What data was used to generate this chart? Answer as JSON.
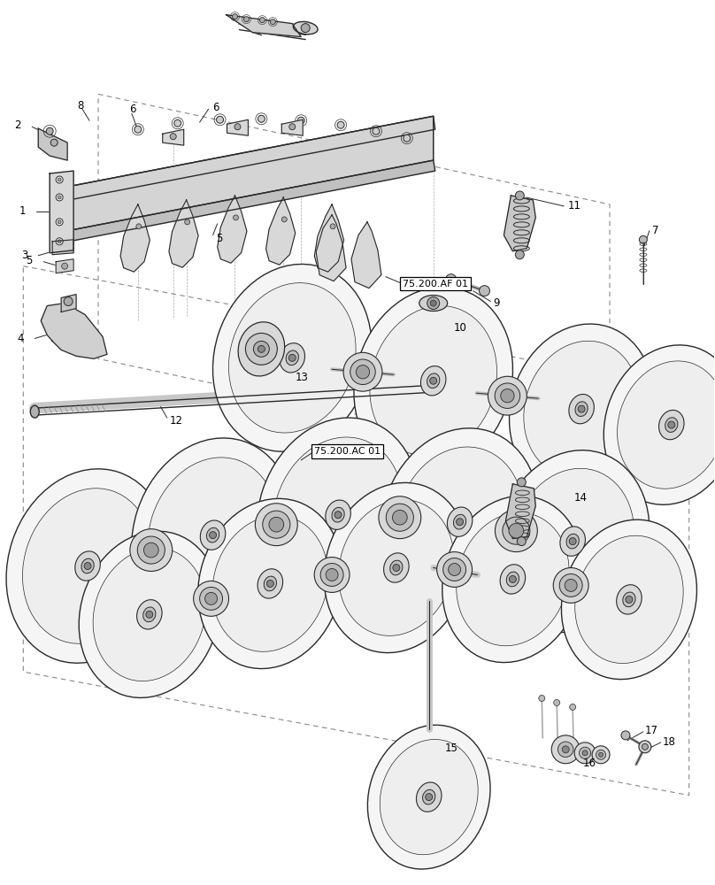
{
  "bg_color": "#ffffff",
  "lc": "#2a2a2a",
  "gray_light": "#e8e8e8",
  "gray_mid": "#c8c8c8",
  "gray_dark": "#999999",
  "figsize": [
    8.08,
    10.0
  ],
  "dpi": 100,
  "disk_color": "#f5f5f5",
  "disk_edge": "#333333",
  "hub_color": "#d0d0d0",
  "frame_color": "#d8d8d8",
  "dash_color": "#888888"
}
